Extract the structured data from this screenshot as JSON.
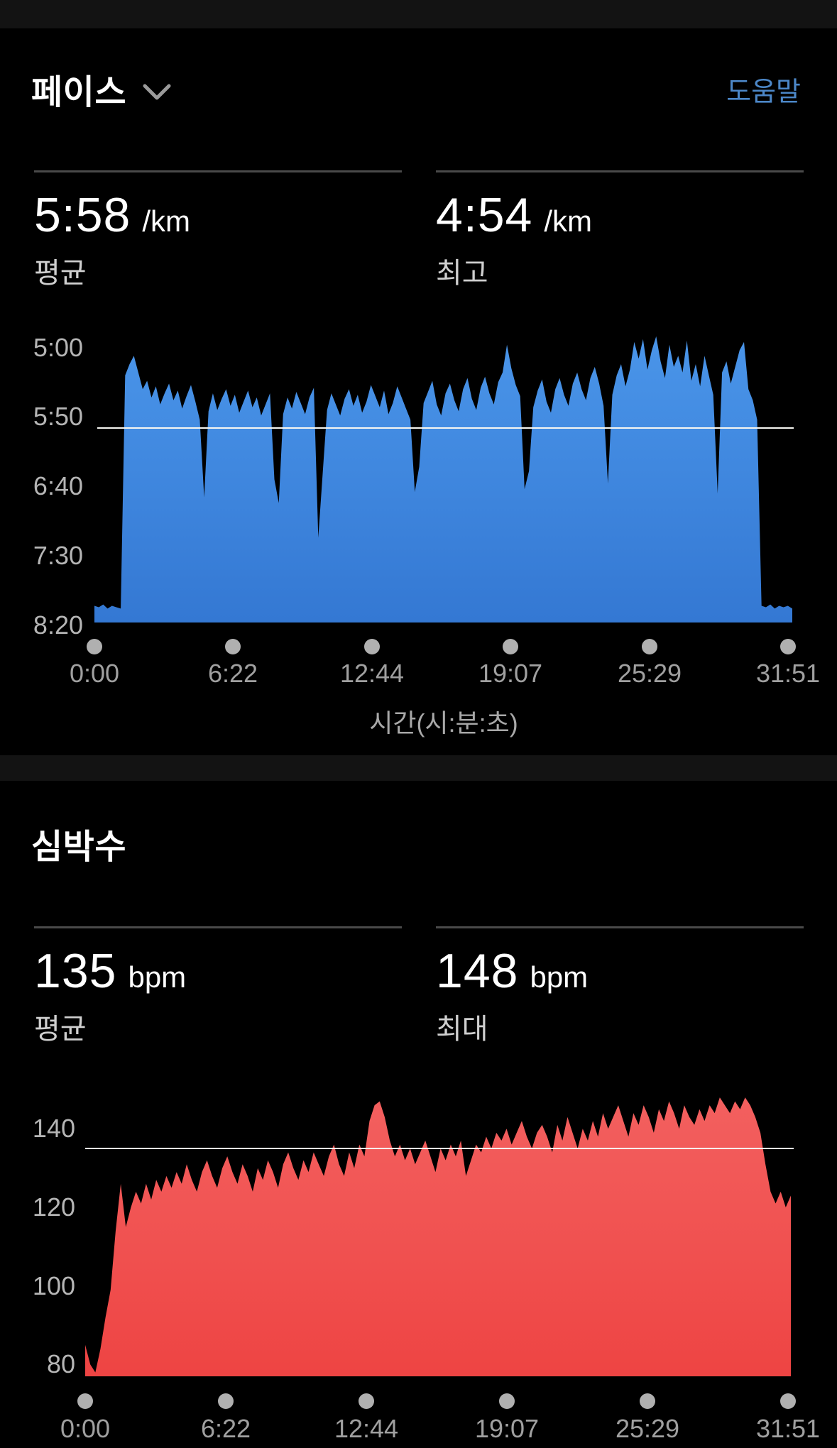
{
  "pace_card": {
    "title": "페이스",
    "dropdown_icon": "chevron-down",
    "help_link": "도움말",
    "stats": [
      {
        "value": "5:58",
        "unit": "/km",
        "label": "평균"
      },
      {
        "value": "4:54",
        "unit": "/km",
        "label": "최고"
      }
    ]
  },
  "heart_rate_card": {
    "title": "심박수",
    "stats": [
      {
        "value": "135",
        "unit": "bpm",
        "label": "평균"
      },
      {
        "value": "148",
        "unit": "bpm",
        "label": "최대"
      }
    ]
  },
  "colors": {
    "background": "#000000",
    "section_strip": "#131313",
    "help_link_blue": "#4c87c8",
    "average_line": "#f7f7f2",
    "pace_fill_top": "#4a95e9",
    "pace_fill_bottom": "#3478d3",
    "hr_fill_top": "#f3605f",
    "hr_fill_bottom": "#ee4443"
  },
  "chart_data": [
    {
      "type": "area",
      "name": "pace",
      "title": "페이스",
      "unit": "seconds_per_km",
      "y_axis_inverted": true,
      "y_ticks": [
        {
          "label": "5:00",
          "value": 300
        },
        {
          "label": "5:50",
          "value": 350
        },
        {
          "label": "6:40",
          "value": 400
        },
        {
          "label": "7:30",
          "value": 450
        },
        {
          "label": "8:20",
          "value": 500
        }
      ],
      "ylim": {
        "top_value": 289,
        "bottom_value": 498
      },
      "average_value": 358,
      "max_value": 294,
      "x_ticks": [
        "0:00",
        "6:22",
        "12:44",
        "19:07",
        "25:29",
        "31:51"
      ],
      "x_axis_title": "시간(시:분:초)",
      "x_range_seconds": [
        0,
        1911
      ],
      "fill_top": "#4a95e9",
      "fill_bottom": "#3478d3",
      "values": [
        486,
        487,
        485,
        488,
        486,
        487,
        488,
        320,
        312,
        306,
        318,
        330,
        324,
        336,
        328,
        341,
        333,
        326,
        338,
        331,
        344,
        335,
        327,
        339,
        352,
        408,
        346,
        333,
        345,
        337,
        330,
        342,
        334,
        347,
        339,
        331,
        343,
        336,
        349,
        341,
        333,
        395,
        412,
        348,
        336,
        344,
        332,
        340,
        348,
        336,
        329,
        437,
        391,
        345,
        333,
        341,
        349,
        337,
        330,
        342,
        334,
        347,
        339,
        327,
        335,
        343,
        331,
        348,
        340,
        328,
        336,
        344,
        352,
        404,
        386,
        340,
        332,
        324,
        341,
        349,
        333,
        326,
        338,
        346,
        330,
        322,
        337,
        345,
        329,
        321,
        333,
        341,
        325,
        318,
        298,
        315,
        327,
        335,
        402,
        389,
        343,
        331,
        323,
        339,
        347,
        330,
        322,
        334,
        342,
        326,
        318,
        330,
        338,
        322,
        314,
        326,
        342,
        398,
        334,
        320,
        312,
        328,
        316,
        296,
        308,
        294,
        316,
        302,
        292,
        310,
        322,
        298,
        314,
        306,
        318,
        295,
        324,
        312,
        328,
        306,
        320,
        334,
        405,
        318,
        310,
        326,
        314,
        302,
        296,
        330,
        338,
        352,
        486,
        487,
        485,
        488,
        486,
        487,
        486,
        488
      ]
    },
    {
      "type": "area",
      "name": "heart-rate",
      "title": "심박수",
      "unit": "bpm",
      "y_axis_inverted": false,
      "y_ticks": [
        {
          "label": "140",
          "value": 140
        },
        {
          "label": "120",
          "value": 120
        },
        {
          "label": "100",
          "value": 100
        },
        {
          "label": "80",
          "value": 80
        }
      ],
      "ylim": {
        "top_value": 150,
        "bottom_value": 77
      },
      "average_value": 135,
      "max_value": 148,
      "x_ticks": [
        "0:00",
        "6:22",
        "12:44",
        "19:07",
        "25:29",
        "31:51"
      ],
      "x_axis_title": "",
      "x_range_seconds": [
        0,
        1911
      ],
      "fill_top": "#f3605f",
      "fill_bottom": "#ee4443",
      "values": [
        85,
        80,
        78,
        84,
        92,
        99,
        114,
        126,
        115,
        120,
        124,
        121,
        126,
        122,
        127,
        124,
        128,
        125,
        129,
        126,
        131,
        127,
        124,
        129,
        132,
        128,
        125,
        130,
        133,
        129,
        126,
        131,
        128,
        124,
        130,
        127,
        132,
        129,
        125,
        131,
        134,
        130,
        127,
        132,
        129,
        134,
        131,
        128,
        133,
        136,
        131,
        128,
        134,
        130,
        136,
        133,
        142,
        146,
        147,
        143,
        137,
        133,
        136,
        132,
        135,
        131,
        134,
        137,
        133,
        129,
        135,
        132,
        136,
        133,
        137,
        128,
        132,
        136,
        134,
        138,
        135,
        139,
        137,
        140,
        136,
        139,
        142,
        138,
        135,
        139,
        141,
        138,
        134,
        141,
        137,
        143,
        139,
        135,
        140,
        137,
        142,
        138,
        144,
        140,
        143,
        146,
        142,
        138,
        144,
        141,
        146,
        143,
        139,
        145,
        142,
        147,
        144,
        140,
        146,
        143,
        141,
        145,
        142,
        146,
        144,
        148,
        146,
        144,
        147,
        145,
        148,
        146,
        143,
        139,
        131,
        124,
        121,
        124,
        120,
        123
      ]
    }
  ]
}
